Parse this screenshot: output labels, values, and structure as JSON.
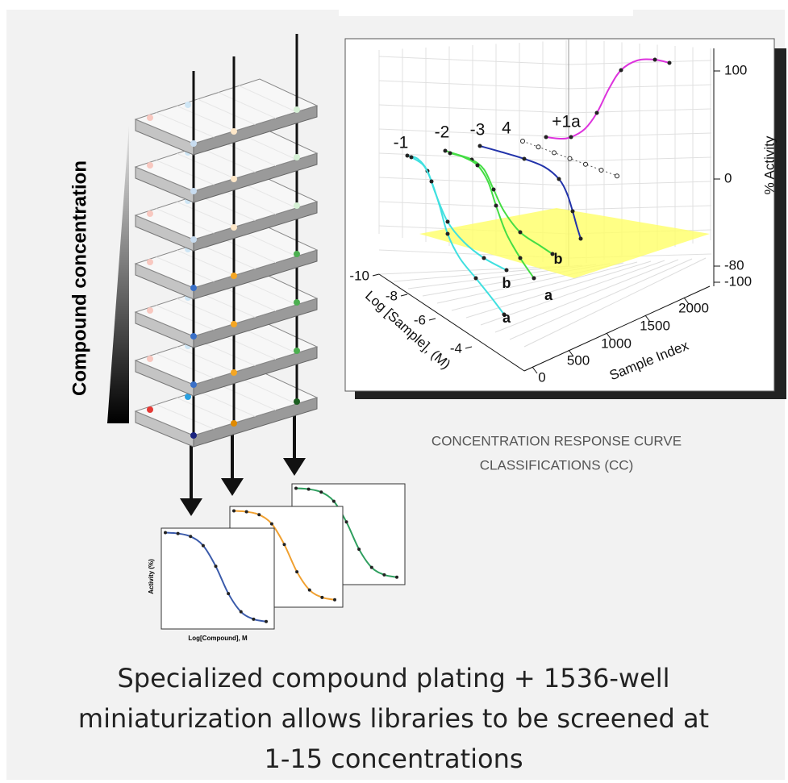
{
  "left_label": "Compound concentration",
  "plot3d": {
    "series_labels": [
      "-1",
      "-2",
      "-3",
      "4",
      "+1a"
    ],
    "curve_tags": [
      "b",
      "a",
      "b",
      "a"
    ],
    "z_axis": {
      "title": "% Activity",
      "ticks": [
        "100",
        "0",
        "-80",
        "-100"
      ]
    },
    "x_axis": {
      "title": "Log [Sample], (M)",
      "ticks": [
        "-10",
        "-8",
        "-6",
        "-4"
      ]
    },
    "y_axis": {
      "title": "Sample Index",
      "ticks": [
        "0",
        "500",
        "1000",
        "1500",
        "2000"
      ]
    }
  },
  "caption": [
    "CONCENTRATION RESPONSE CURVE",
    "CLASSIFICATIONS (CC)"
  ],
  "mini_plot": {
    "y_title": "Activity (%)",
    "x_title": "Log[Compound], M"
  },
  "footer": [
    "Specialized compound plating + 1536-well",
    "miniaturization allows libraries to be screened at",
    "1-15 concentrations"
  ]
}
